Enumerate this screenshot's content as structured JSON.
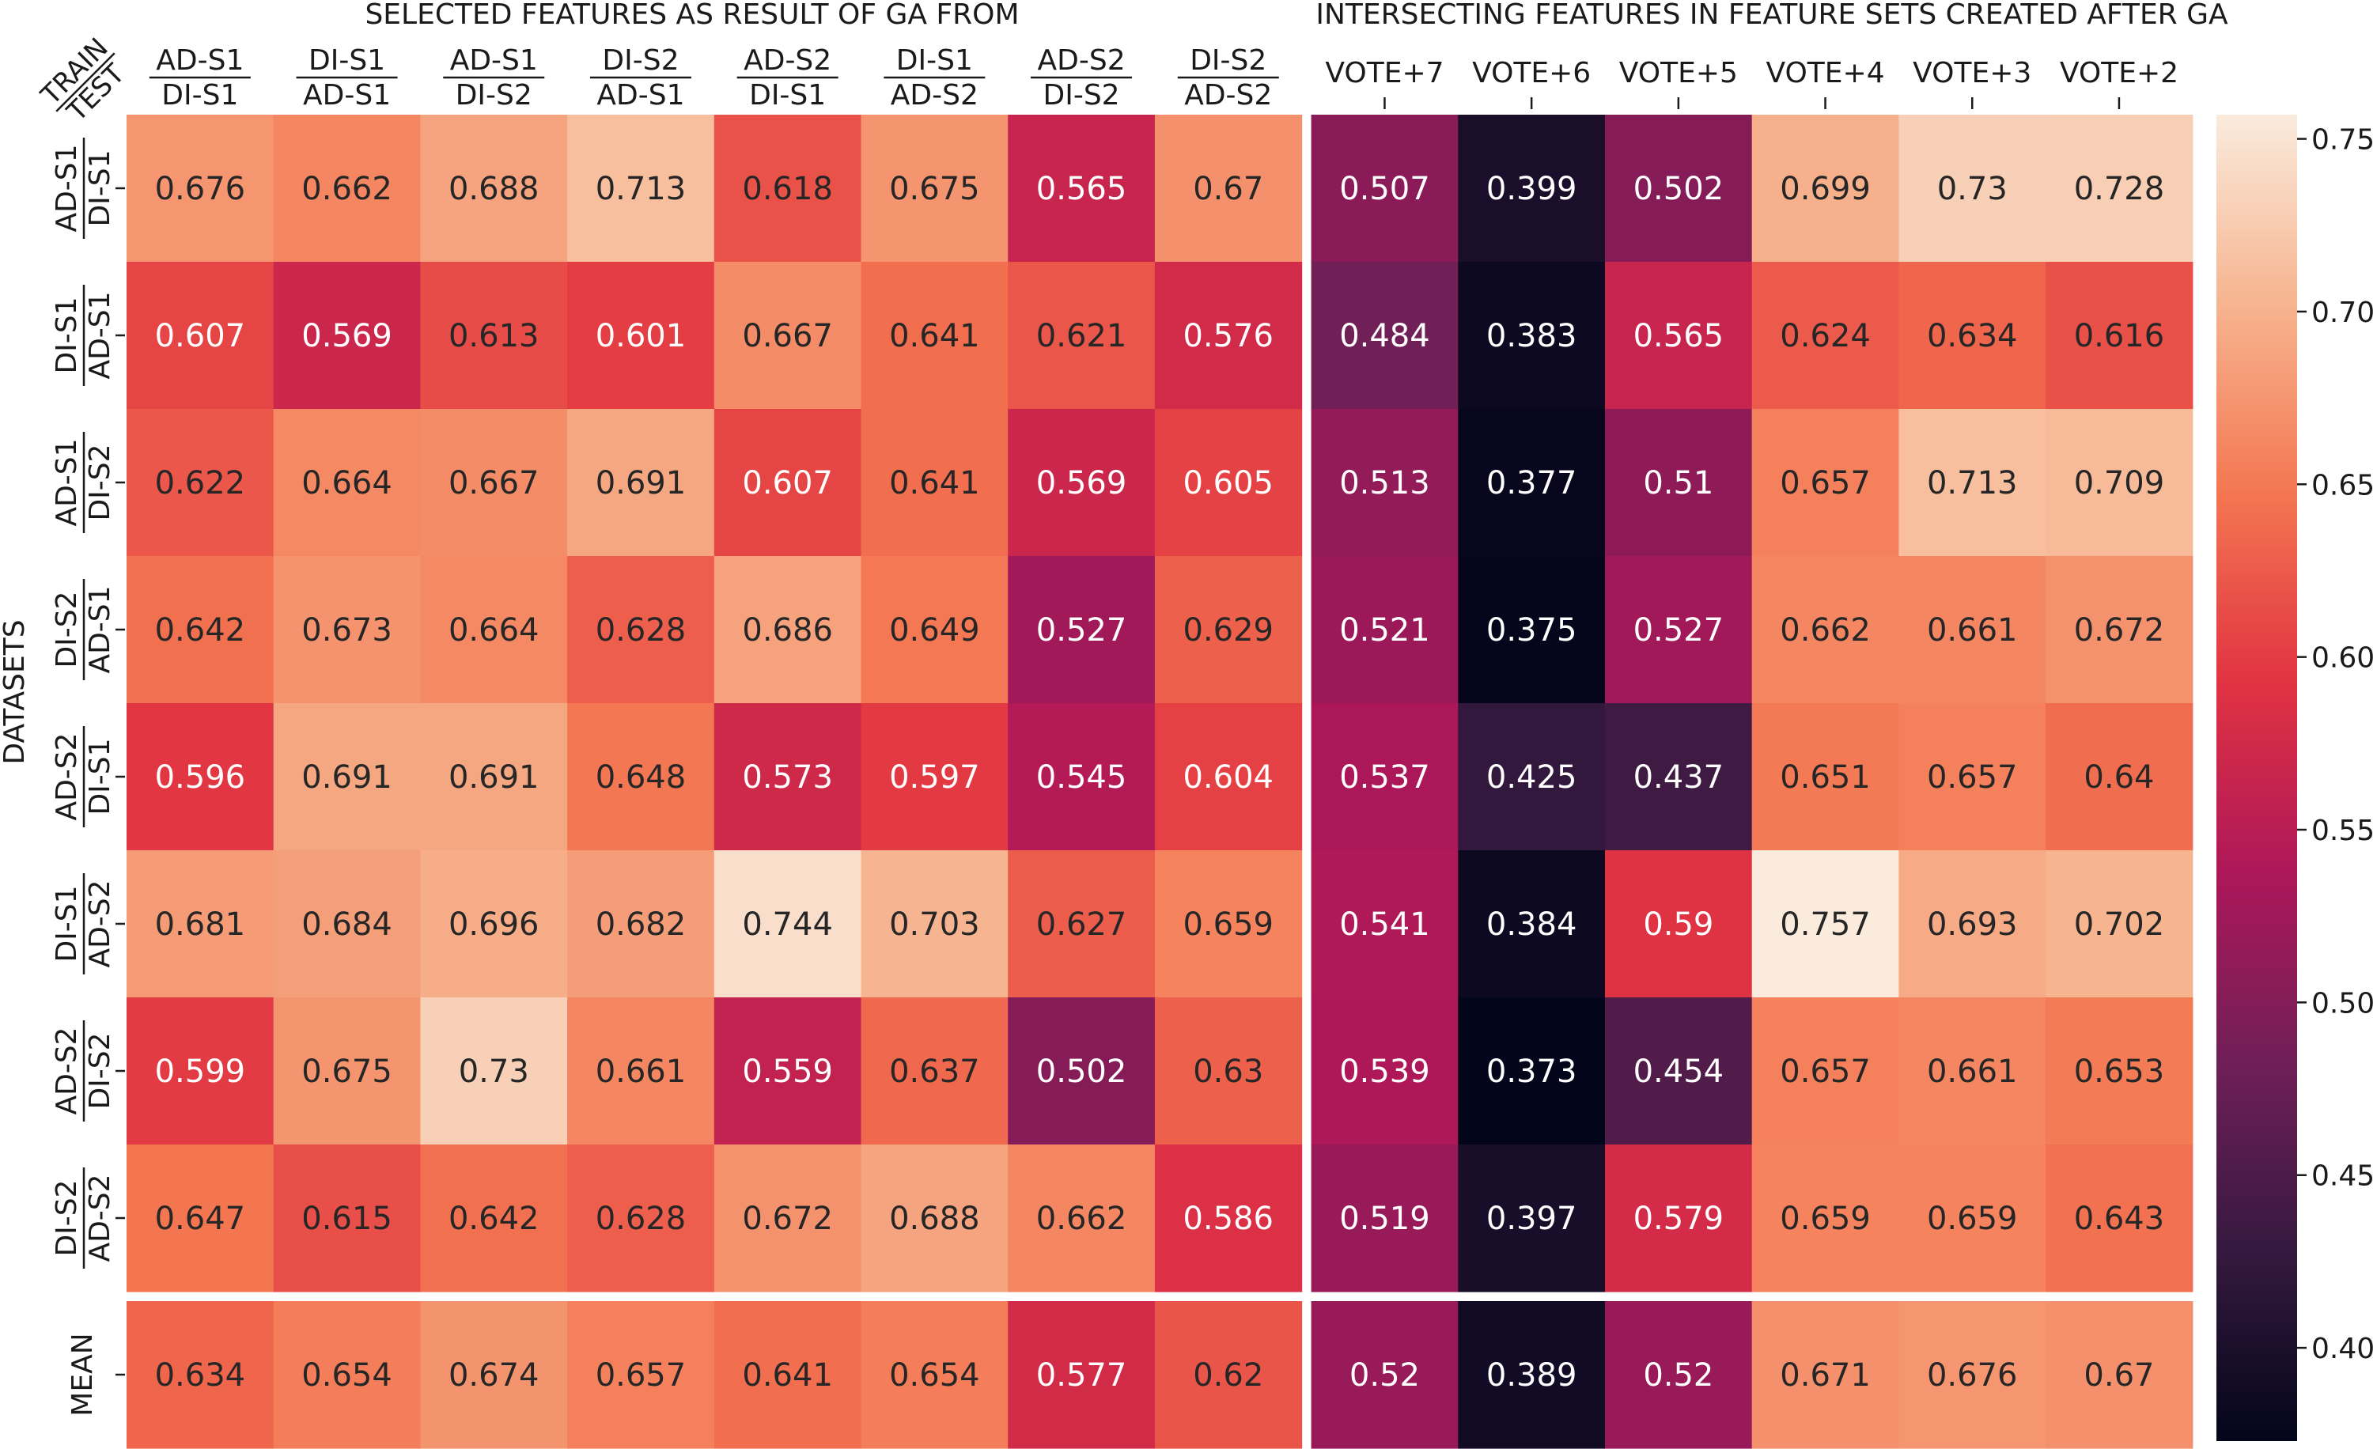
{
  "chart_data": {
    "type": "heatmap",
    "title_selected": "SELECTED FEATURES AS  RESULT OF GA FROM",
    "title_intersecting": "INTERSECTING FEATURES IN FEATURE SETS CREATED AFTER GA",
    "corner_top": "TRAIN",
    "corner_bottom": "TEST",
    "ylabel": "DATASETS",
    "columns": [
      {
        "top": "AD-S1",
        "bottom": "DI-S1"
      },
      {
        "top": "DI-S1",
        "bottom": "AD-S1"
      },
      {
        "top": "AD-S1",
        "bottom": "DI-S2"
      },
      {
        "top": "DI-S2",
        "bottom": "AD-S1"
      },
      {
        "top": "AD-S2",
        "bottom": "DI-S1"
      },
      {
        "top": "DI-S1",
        "bottom": "AD-S2"
      },
      {
        "top": "AD-S2",
        "bottom": "DI-S2"
      },
      {
        "top": "DI-S2",
        "bottom": "AD-S2"
      },
      {
        "label": "VOTE+7"
      },
      {
        "label": "VOTE+6"
      },
      {
        "label": "VOTE+5"
      },
      {
        "label": "VOTE+4"
      },
      {
        "label": "VOTE+3"
      },
      {
        "label": "VOTE+2"
      }
    ],
    "rows": [
      {
        "top": "AD-S1",
        "bottom": "DI-S1"
      },
      {
        "top": "DI-S1",
        "bottom": "AD-S1"
      },
      {
        "top": "AD-S1",
        "bottom": "DI-S2"
      },
      {
        "top": "DI-S2",
        "bottom": "AD-S1"
      },
      {
        "top": "AD-S2",
        "bottom": "DI-S1"
      },
      {
        "top": "DI-S1",
        "bottom": "AD-S2"
      },
      {
        "top": "AD-S2",
        "bottom": "DI-S2"
      },
      {
        "top": "DI-S2",
        "bottom": "AD-S2"
      },
      {
        "label": "MEAN"
      }
    ],
    "values": [
      [
        "0.676",
        "0.662",
        "0.688",
        "0.713",
        "0.618",
        "0.675",
        "0.565",
        "0.67",
        "0.507",
        "0.399",
        "0.502",
        "0.699",
        "0.73",
        "0.728"
      ],
      [
        "0.607",
        "0.569",
        "0.613",
        "0.601",
        "0.667",
        "0.641",
        "0.621",
        "0.576",
        "0.484",
        "0.383",
        "0.565",
        "0.624",
        "0.634",
        "0.616"
      ],
      [
        "0.622",
        "0.664",
        "0.667",
        "0.691",
        "0.607",
        "0.641",
        "0.569",
        "0.605",
        "0.513",
        "0.377",
        "0.51",
        "0.657",
        "0.713",
        "0.709"
      ],
      [
        "0.642",
        "0.673",
        "0.664",
        "0.628",
        "0.686",
        "0.649",
        "0.527",
        "0.629",
        "0.521",
        "0.375",
        "0.527",
        "0.662",
        "0.661",
        "0.672"
      ],
      [
        "0.596",
        "0.691",
        "0.691",
        "0.648",
        "0.573",
        "0.597",
        "0.545",
        "0.604",
        "0.537",
        "0.425",
        "0.437",
        "0.651",
        "0.657",
        "0.64"
      ],
      [
        "0.681",
        "0.684",
        "0.696",
        "0.682",
        "0.744",
        "0.703",
        "0.627",
        "0.659",
        "0.541",
        "0.384",
        "0.59",
        "0.757",
        "0.693",
        "0.702"
      ],
      [
        "0.599",
        "0.675",
        "0.73",
        "0.661",
        "0.559",
        "0.637",
        "0.502",
        "0.63",
        "0.539",
        "0.373",
        "0.454",
        "0.657",
        "0.661",
        "0.653"
      ],
      [
        "0.647",
        "0.615",
        "0.642",
        "0.628",
        "0.672",
        "0.688",
        "0.662",
        "0.586",
        "0.519",
        "0.397",
        "0.579",
        "0.659",
        "0.659",
        "0.643"
      ],
      [
        "0.634",
        "0.654",
        "0.674",
        "0.657",
        "0.641",
        "0.654",
        "0.577",
        "0.62",
        "0.52",
        "0.389",
        "0.52",
        "0.671",
        "0.676",
        "0.67"
      ]
    ],
    "colorbar": {
      "range": [
        0.373,
        0.757
      ],
      "ticks": [
        "0.40",
        "0.45",
        "0.50",
        "0.55",
        "0.60",
        "0.65",
        "0.70",
        "0.75"
      ],
      "colormap": "rocket",
      "colormap_stops": [
        "#03051a",
        "#35193e",
        "#701f57",
        "#ad1759",
        "#e13342",
        "#f37651",
        "#f6b48f",
        "#faebdd"
      ]
    },
    "grid": false,
    "legend": "colorbar-right"
  }
}
